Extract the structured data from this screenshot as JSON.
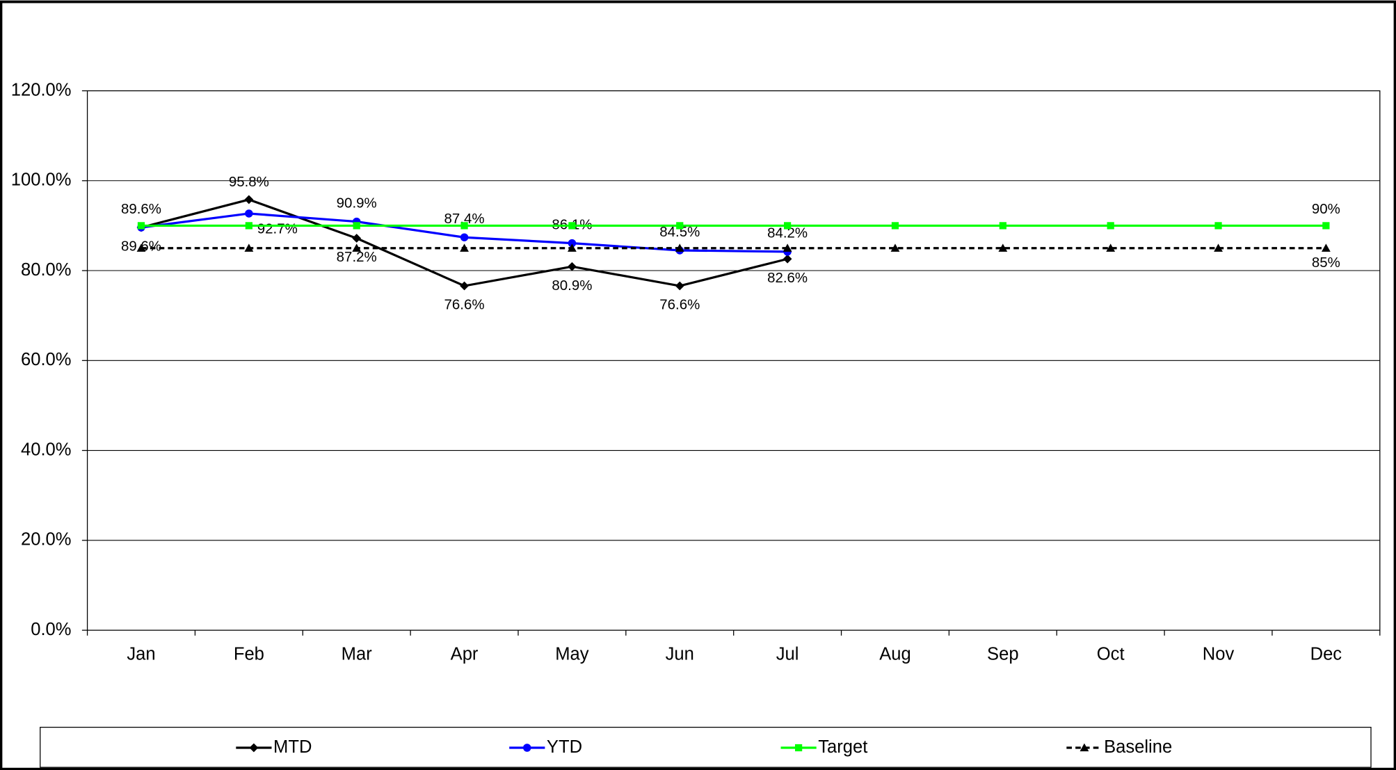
{
  "chart_data": {
    "type": "line",
    "categories": [
      "Jan",
      "Feb",
      "Mar",
      "Apr",
      "May",
      "Jun",
      "Jul",
      "Aug",
      "Sep",
      "Oct",
      "Nov",
      "Dec"
    ],
    "series": [
      {
        "name": "MTD",
        "color": "#000000",
        "marker": "diamond",
        "dash": false,
        "values": [
          89.6,
          95.8,
          87.2,
          76.6,
          80.9,
          76.6,
          82.6,
          null,
          null,
          null,
          null,
          null
        ],
        "value_labels": [
          "89.6%",
          "95.8%",
          "87.2%",
          "76.6%",
          "80.9%",
          "76.6%",
          "82.6%",
          null,
          null,
          null,
          null,
          null
        ]
      },
      {
        "name": "YTD",
        "color": "#0000ff",
        "marker": "circle",
        "dash": false,
        "values": [
          89.6,
          92.7,
          90.9,
          87.4,
          86.1,
          84.5,
          84.2,
          null,
          null,
          null,
          null,
          null
        ],
        "value_labels": [
          "89.6%",
          "92.7%",
          "90.9%",
          "87.4%",
          "86.1%",
          "84.5%",
          "84.2%",
          null,
          null,
          null,
          null,
          null
        ]
      },
      {
        "name": "Target",
        "color": "#00ff00",
        "marker": "square",
        "dash": false,
        "values": [
          90,
          90,
          90,
          90,
          90,
          90,
          90,
          90,
          90,
          90,
          90,
          90
        ],
        "value_labels": [
          null,
          null,
          null,
          null,
          null,
          null,
          null,
          null,
          null,
          null,
          null,
          "90%"
        ]
      },
      {
        "name": "Baseline",
        "color": "#000000",
        "marker": "triangle",
        "dash": true,
        "values": [
          85,
          85,
          85,
          85,
          85,
          85,
          85,
          85,
          85,
          85,
          85,
          85
        ],
        "value_labels": [
          null,
          null,
          null,
          null,
          null,
          null,
          null,
          null,
          null,
          null,
          null,
          "85%"
        ]
      }
    ],
    "ylim": [
      0,
      120
    ],
    "yticks": [
      {
        "value": 0,
        "label": "0.0%"
      },
      {
        "value": 20,
        "label": "20.0%"
      },
      {
        "value": 40,
        "label": "40.0%"
      },
      {
        "value": 60,
        "label": "60.0%"
      },
      {
        "value": 80,
        "label": "80.0%"
      },
      {
        "value": 100,
        "label": "100.0%"
      },
      {
        "value": 120,
        "label": "120.0%"
      }
    ],
    "grid": true,
    "legend": "bottom"
  }
}
